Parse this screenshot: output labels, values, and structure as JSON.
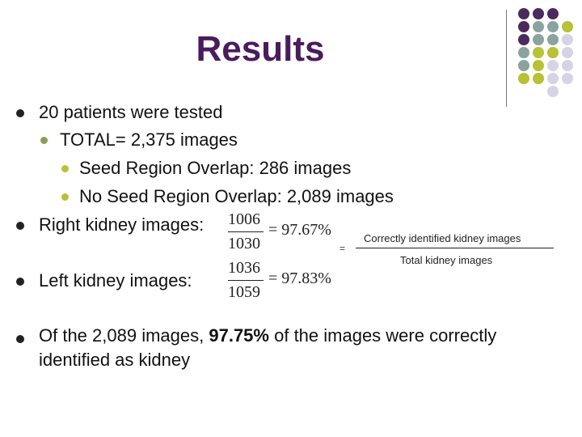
{
  "title": "Results",
  "colors": {
    "title": "#4b1b5e",
    "purple": "#4b2a5e",
    "teal": "#8aa39f",
    "yellow": "#b7c234",
    "lavender": "#d6d4e4"
  },
  "bullets": {
    "patients": "20 patients were tested",
    "total": "TOTAL= 2,375 images",
    "seed_overlap": "Seed Region Overlap: 286 images",
    "no_seed_overlap": "No Seed Region Overlap: 2,089 images",
    "right_kidney": "Right kidney images:",
    "left_kidney": "Left kidney images:",
    "summary_pre": "Of the 2,089 images,",
    "summary_pct": "97.75%",
    "summary_post": "of the images were correctly",
    "summary_line2": "identified as kidney"
  },
  "right_fraction": {
    "numerator": "1006",
    "denominator": "1030",
    "result": "= 97.67%"
  },
  "left_fraction": {
    "numerator": "1036",
    "denominator": "1059",
    "result": "= 97.83%"
  },
  "ratio": {
    "equals": "=",
    "numerator": "Correctly identified kidney images",
    "denominator": "Total kidney images"
  }
}
